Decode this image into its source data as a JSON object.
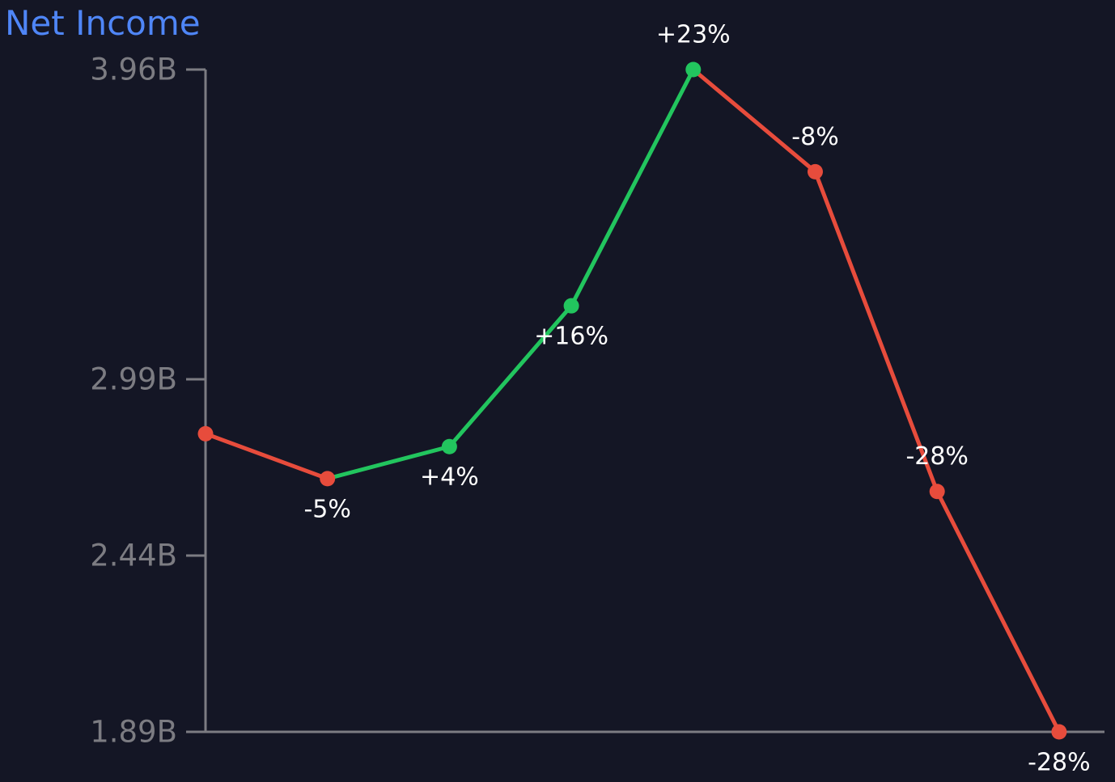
{
  "chart_data": {
    "type": "line",
    "title": "Net Income",
    "xlabel": "",
    "ylabel": "",
    "ylim": [
      1.89,
      3.96
    ],
    "y_ticks": [
      {
        "value": 3.96,
        "label": "3.96B"
      },
      {
        "value": 2.99,
        "label": "2.99B"
      },
      {
        "value": 2.44,
        "label": "2.44B"
      },
      {
        "value": 1.89,
        "label": "1.89B"
      }
    ],
    "y_scale": "piecewise-linear",
    "grid": false,
    "legend": "none",
    "series": [
      {
        "values": [
          2.82,
          2.68,
          2.78,
          3.22,
          3.96,
          3.64,
          2.64,
          1.89
        ],
        "change_labels": [
          "",
          "-5%",
          "+4%",
          "+16%",
          "+23%",
          "-8%",
          "-28%",
          "-28%"
        ]
      }
    ],
    "colors": {
      "up": "#22c55e",
      "down": "#e74c3c",
      "axis": "#7c7c82",
      "title": "#4f86f7",
      "label": "#ffffff",
      "background": "#141625"
    }
  }
}
